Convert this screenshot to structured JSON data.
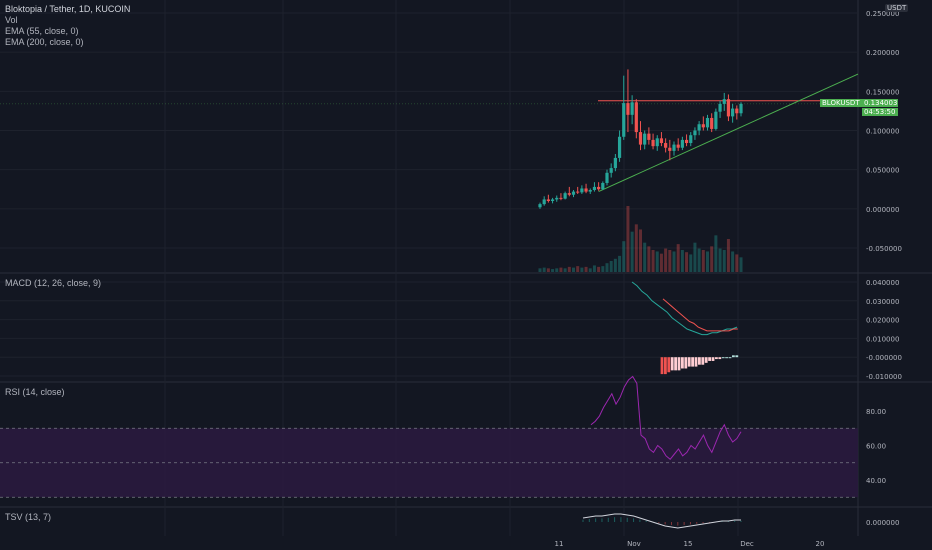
{
  "header": {
    "symbol_title": "Bloktopia / Tether, 1D, KUCOIN",
    "indicators": [
      "Vol",
      "EMA (55, close, 0)",
      "EMA (200, close, 0)"
    ],
    "currency_badge": "USDT"
  },
  "price_tag": {
    "symbol": "BLOKUSDT",
    "price": "0.134003",
    "countdown": "04:53:50",
    "color": "#4caf50"
  },
  "colors": {
    "up": "#26a69a",
    "down": "#ef5350",
    "background": "#131722",
    "rsi_band": "#2a1a3e",
    "rsi_line": "#9c27b0"
  },
  "panes": {
    "macd": {
      "title": "MACD (12, 26, close, 9)",
      "ticks": [
        "0.040000",
        "0.030000",
        "0.020000",
        "0.010000",
        "-0.000000",
        "-0.010000"
      ]
    },
    "rsi": {
      "title": "RSI (14, close)",
      "ticks": [
        "80.00",
        "60.00",
        "40.00"
      ]
    },
    "tsv": {
      "title": "TSV (13, 7)",
      "ticks": [
        "0.000000"
      ]
    }
  },
  "x_axis": [
    "11",
    "Nov",
    "15",
    "Dec",
    "20"
  ],
  "chart_data": {
    "type": "candlestick",
    "y_ticks": [
      "0.250000",
      "0.200000",
      "0.150000",
      "0.100000",
      "0.050000",
      "0.000000",
      "-0.050000"
    ],
    "ylim": [
      -0.08,
      0.25
    ],
    "resistance_level": 0.138,
    "trendline": {
      "from": [
        0,
        0.022
      ],
      "to": [
        52,
        0.172
      ]
    },
    "candles": [
      {
        "o": 0.002,
        "h": 0.008,
        "l": 0.0,
        "c": 0.006
      },
      {
        "o": 0.006,
        "h": 0.016,
        "l": 0.004,
        "c": 0.012
      },
      {
        "o": 0.012,
        "h": 0.018,
        "l": 0.008,
        "c": 0.01
      },
      {
        "o": 0.01,
        "h": 0.014,
        "l": 0.007,
        "c": 0.012
      },
      {
        "o": 0.012,
        "h": 0.017,
        "l": 0.009,
        "c": 0.014
      },
      {
        "o": 0.014,
        "h": 0.02,
        "l": 0.011,
        "c": 0.013
      },
      {
        "o": 0.013,
        "h": 0.022,
        "l": 0.012,
        "c": 0.02
      },
      {
        "o": 0.02,
        "h": 0.028,
        "l": 0.016,
        "c": 0.018
      },
      {
        "o": 0.018,
        "h": 0.024,
        "l": 0.015,
        "c": 0.022
      },
      {
        "o": 0.022,
        "h": 0.028,
        "l": 0.019,
        "c": 0.021
      },
      {
        "o": 0.021,
        "h": 0.03,
        "l": 0.019,
        "c": 0.026
      },
      {
        "o": 0.026,
        "h": 0.032,
        "l": 0.02,
        "c": 0.022
      },
      {
        "o": 0.022,
        "h": 0.026,
        "l": 0.019,
        "c": 0.024
      },
      {
        "o": 0.024,
        "h": 0.034,
        "l": 0.022,
        "c": 0.028
      },
      {
        "o": 0.028,
        "h": 0.034,
        "l": 0.023,
        "c": 0.025
      },
      {
        "o": 0.025,
        "h": 0.035,
        "l": 0.024,
        "c": 0.033
      },
      {
        "o": 0.033,
        "h": 0.05,
        "l": 0.03,
        "c": 0.046
      },
      {
        "o": 0.046,
        "h": 0.058,
        "l": 0.04,
        "c": 0.052
      },
      {
        "o": 0.052,
        "h": 0.07,
        "l": 0.048,
        "c": 0.065
      },
      {
        "o": 0.065,
        "h": 0.1,
        "l": 0.06,
        "c": 0.092
      },
      {
        "o": 0.092,
        "h": 0.17,
        "l": 0.088,
        "c": 0.135
      },
      {
        "o": 0.135,
        "h": 0.178,
        "l": 0.098,
        "c": 0.12
      },
      {
        "o": 0.12,
        "h": 0.145,
        "l": 0.108,
        "c": 0.136
      },
      {
        "o": 0.136,
        "h": 0.14,
        "l": 0.09,
        "c": 0.098
      },
      {
        "o": 0.098,
        "h": 0.112,
        "l": 0.075,
        "c": 0.082
      },
      {
        "o": 0.082,
        "h": 0.1,
        "l": 0.076,
        "c": 0.096
      },
      {
        "o": 0.096,
        "h": 0.104,
        "l": 0.082,
        "c": 0.088
      },
      {
        "o": 0.088,
        "h": 0.096,
        "l": 0.076,
        "c": 0.08
      },
      {
        "o": 0.08,
        "h": 0.094,
        "l": 0.074,
        "c": 0.09
      },
      {
        "o": 0.09,
        "h": 0.098,
        "l": 0.08,
        "c": 0.084
      },
      {
        "o": 0.084,
        "h": 0.09,
        "l": 0.072,
        "c": 0.078
      },
      {
        "o": 0.078,
        "h": 0.088,
        "l": 0.062,
        "c": 0.074
      },
      {
        "o": 0.074,
        "h": 0.086,
        "l": 0.068,
        "c": 0.082
      },
      {
        "o": 0.082,
        "h": 0.09,
        "l": 0.074,
        "c": 0.078
      },
      {
        "o": 0.078,
        "h": 0.092,
        "l": 0.075,
        "c": 0.088
      },
      {
        "o": 0.088,
        "h": 0.095,
        "l": 0.08,
        "c": 0.084
      },
      {
        "o": 0.084,
        "h": 0.098,
        "l": 0.08,
        "c": 0.094
      },
      {
        "o": 0.094,
        "h": 0.104,
        "l": 0.088,
        "c": 0.1
      },
      {
        "o": 0.1,
        "h": 0.112,
        "l": 0.094,
        "c": 0.108
      },
      {
        "o": 0.108,
        "h": 0.118,
        "l": 0.1,
        "c": 0.104
      },
      {
        "o": 0.104,
        "h": 0.12,
        "l": 0.1,
        "c": 0.116
      },
      {
        "o": 0.116,
        "h": 0.122,
        "l": 0.098,
        "c": 0.102
      },
      {
        "o": 0.102,
        "h": 0.128,
        "l": 0.1,
        "c": 0.124
      },
      {
        "o": 0.124,
        "h": 0.138,
        "l": 0.116,
        "c": 0.134
      },
      {
        "o": 0.134,
        "h": 0.148,
        "l": 0.125,
        "c": 0.14
      },
      {
        "o": 0.14,
        "h": 0.146,
        "l": 0.112,
        "c": 0.118
      },
      {
        "o": 0.118,
        "h": 0.134,
        "l": 0.11,
        "c": 0.128
      },
      {
        "o": 0.128,
        "h": 0.132,
        "l": 0.114,
        "c": 0.122
      },
      {
        "o": 0.122,
        "h": 0.136,
        "l": 0.118,
        "c": 0.134
      }
    ],
    "volume": [
      0.05,
      0.06,
      0.05,
      0.04,
      0.05,
      0.06,
      0.05,
      0.07,
      0.06,
      0.08,
      0.06,
      0.07,
      0.05,
      0.09,
      0.07,
      0.08,
      0.12,
      0.15,
      0.18,
      0.22,
      0.42,
      0.9,
      0.55,
      0.65,
      0.58,
      0.4,
      0.35,
      0.3,
      0.28,
      0.25,
      0.32,
      0.3,
      0.28,
      0.38,
      0.3,
      0.27,
      0.24,
      0.4,
      0.32,
      0.3,
      0.28,
      0.35,
      0.5,
      0.32,
      0.3,
      0.45,
      0.28,
      0.24,
      0.2
    ],
    "macd": [
      0.04,
      0.038,
      0.035,
      0.033,
      0.03,
      0.028,
      0.026,
      0.024,
      0.021,
      0.019,
      0.017,
      0.015,
      0.014,
      0.013,
      0.012,
      0.012,
      0.013,
      0.013,
      0.014,
      0.015,
      0.015,
      0.016
    ],
    "macd_signal": [
      0.031,
      0.029,
      0.027,
      0.025,
      0.023,
      0.021,
      0.019,
      0.018,
      0.016,
      0.015,
      0.014,
      0.014,
      0.014,
      0.014,
      0.014,
      0.014,
      0.015,
      0.015
    ],
    "macd_hist": [
      -0.009,
      -0.009,
      -0.008,
      -0.007,
      -0.007,
      -0.007,
      -0.006,
      -0.006,
      -0.005,
      -0.005,
      -0.005,
      -0.004,
      -0.004,
      -0.003,
      -0.002,
      -0.002,
      -0.001,
      -0.001,
      0.0,
      0.0,
      0.0,
      0.001,
      0.001
    ],
    "rsi": [
      72,
      74,
      77,
      82,
      86,
      90,
      84,
      88,
      94,
      98,
      100,
      96,
      66,
      64,
      58,
      56,
      60,
      58,
      54,
      52,
      55,
      58,
      54,
      56,
      60,
      58,
      62,
      66,
      60,
      56,
      62,
      68,
      72,
      66,
      62,
      64,
      68
    ],
    "tsv": [
      0.4,
      0.5,
      0.6,
      0.6,
      0.7,
      0.8,
      0.8,
      0.7,
      0.6,
      0.4,
      0.2,
      0.0,
      -0.2,
      -0.4,
      -0.5,
      -0.6,
      -0.5,
      -0.4,
      -0.3,
      -0.2,
      -0.1,
      0.0,
      0.1,
      0.1,
      0.2,
      0.2
    ]
  }
}
